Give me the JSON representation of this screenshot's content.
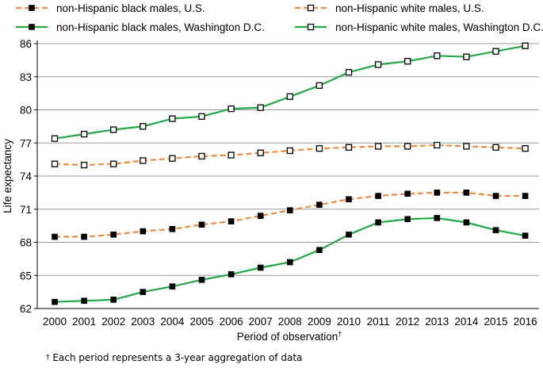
{
  "chart_data": {
    "type": "line",
    "ylabel": "Life expectancy",
    "xlabel": "Period of observation",
    "xlabel_mark": "†",
    "ylim": [
      62,
      86
    ],
    "yticks": [
      62,
      65,
      68,
      71,
      74,
      77,
      80,
      83,
      86
    ],
    "grid": true,
    "legend_position": "top",
    "categories": [
      "2000",
      "2001",
      "2002",
      "2003",
      "2004",
      "2005",
      "2006",
      "2007",
      "2008",
      "2009",
      "2010",
      "2011",
      "2012",
      "2013",
      "2014",
      "2015",
      "2016"
    ],
    "series": [
      {
        "name": "non-Hispanic black males, U.S.",
        "color": "#ed8a3f",
        "line_style": "dashed",
        "marker": "filled-square",
        "values": [
          68.5,
          68.5,
          68.7,
          69.0,
          69.2,
          69.6,
          69.9,
          70.4,
          70.9,
          71.4,
          71.9,
          72.2,
          72.4,
          72.5,
          72.5,
          72.2,
          72.2
        ]
      },
      {
        "name": "non-Hispanic white males, U.S.",
        "color": "#ed8a3f",
        "line_style": "dashed",
        "marker": "open-square",
        "values": [
          75.1,
          75.0,
          75.1,
          75.4,
          75.6,
          75.8,
          75.9,
          76.1,
          76.3,
          76.5,
          76.6,
          76.7,
          76.7,
          76.8,
          76.7,
          76.6,
          76.5
        ]
      },
      {
        "name": "non-Hispanic black males, Washington D.C.",
        "color": "#22a845",
        "line_style": "solid",
        "marker": "filled-square",
        "values": [
          62.6,
          62.7,
          62.8,
          63.5,
          64.0,
          64.6,
          65.1,
          65.7,
          66.2,
          67.3,
          68.7,
          69.8,
          70.1,
          70.2,
          69.8,
          69.1,
          68.6
        ]
      },
      {
        "name": "non-Hispanic white males, Washington D.C.",
        "color": "#22a845",
        "line_style": "solid",
        "marker": "open-square",
        "values": [
          77.4,
          77.8,
          78.2,
          78.5,
          79.2,
          79.4,
          80.1,
          80.2,
          81.2,
          82.2,
          83.4,
          84.1,
          84.4,
          84.9,
          84.8,
          85.3,
          85.8
        ]
      }
    ]
  },
  "footnote": {
    "mark": "†",
    "text": " Each period represents a 3-year aggregation of data"
  }
}
